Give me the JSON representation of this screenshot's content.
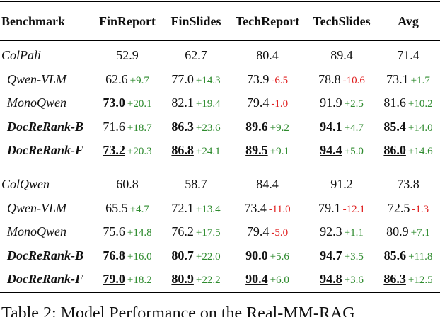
{
  "table": {
    "header": [
      "Benchmark",
      "FinReport",
      "FinSlides",
      "TechReport",
      "TechSlides",
      "Avg"
    ],
    "groups": [
      {
        "rows": [
          {
            "name": "ColPali",
            "cells": [
              {
                "value": "52.9"
              },
              {
                "value": "62.7"
              },
              {
                "value": "80.4"
              },
              {
                "value": "89.4"
              },
              {
                "value": "71.4"
              }
            ]
          },
          {
            "name": "Qwen-VLM",
            "cells": [
              {
                "value": "62.6",
                "delta": "+9.7"
              },
              {
                "value": "77.0",
                "delta": "+14.3"
              },
              {
                "value": "73.9",
                "delta": "-6.5"
              },
              {
                "value": "78.8",
                "delta": "-10.6"
              },
              {
                "value": "73.1",
                "delta": "+1.7"
              }
            ]
          },
          {
            "name": "MonoQwen",
            "cells": [
              {
                "value": "73.0",
                "delta": "+20.1",
                "bold": true
              },
              {
                "value": "82.1",
                "delta": "+19.4"
              },
              {
                "value": "79.4",
                "delta": "-1.0"
              },
              {
                "value": "91.9",
                "delta": "+2.5"
              },
              {
                "value": "81.6",
                "delta": "+10.2"
              }
            ]
          },
          {
            "name": "DocReRank-B",
            "bold": true,
            "cells": [
              {
                "value": "71.6",
                "delta": "+18.7"
              },
              {
                "value": "86.3",
                "delta": "+23.6",
                "bold": true
              },
              {
                "value": "89.6",
                "delta": "+9.2",
                "bold": true
              },
              {
                "value": "94.1",
                "delta": "+4.7",
                "bold": true
              },
              {
                "value": "85.4",
                "delta": "+14.0",
                "bold": true
              }
            ]
          },
          {
            "name": "DocReRank-F",
            "bold": true,
            "cells": [
              {
                "value": "73.2",
                "delta": "+20.3",
                "bold": true,
                "underline": true
              },
              {
                "value": "86.8",
                "delta": "+24.1",
                "bold": true,
                "underline": true
              },
              {
                "value": "89.5",
                "delta": "+9.1",
                "bold": true,
                "underline": true
              },
              {
                "value": "94.4",
                "delta": "+5.0",
                "bold": true,
                "underline": true
              },
              {
                "value": "86.0",
                "delta": "+14.6",
                "bold": true,
                "underline": true
              }
            ]
          }
        ]
      },
      {
        "rows": [
          {
            "name": "ColQwen",
            "cells": [
              {
                "value": "60.8"
              },
              {
                "value": "58.7"
              },
              {
                "value": "84.4"
              },
              {
                "value": "91.2"
              },
              {
                "value": "73.8"
              }
            ]
          },
          {
            "name": "Qwen-VLM",
            "cells": [
              {
                "value": "65.5",
                "delta": "+4.7"
              },
              {
                "value": "72.1",
                "delta": "+13.4"
              },
              {
                "value": "73.4",
                "delta": "-11.0"
              },
              {
                "value": "79.1",
                "delta": "-12.1"
              },
              {
                "value": "72.5",
                "delta": "-1.3"
              }
            ]
          },
          {
            "name": "MonoQwen",
            "cells": [
              {
                "value": "75.6",
                "delta": "+14.8"
              },
              {
                "value": "76.2",
                "delta": "+17.5"
              },
              {
                "value": "79.4",
                "delta": "-5.0"
              },
              {
                "value": "92.3",
                "delta": "+1.1"
              },
              {
                "value": "80.9",
                "delta": "+7.1"
              }
            ]
          },
          {
            "name": "DocReRank-B",
            "bold": true,
            "cells": [
              {
                "value": "76.8",
                "delta": "+16.0",
                "bold": true
              },
              {
                "value": "80.7",
                "delta": "+22.0",
                "bold": true
              },
              {
                "value": "90.0",
                "delta": "+5.6",
                "bold": true
              },
              {
                "value": "94.7",
                "delta": "+3.5",
                "bold": true
              },
              {
                "value": "85.6",
                "delta": "+11.8",
                "bold": true
              }
            ]
          },
          {
            "name": "DocReRank-F",
            "bold": true,
            "cells": [
              {
                "value": "79.0",
                "delta": "+18.2",
                "bold": true,
                "underline": true
              },
              {
                "value": "80.9",
                "delta": "+22.2",
                "bold": true,
                "underline": true
              },
              {
                "value": "90.4",
                "delta": "+6.0",
                "bold": true,
                "underline": true
              },
              {
                "value": "94.8",
                "delta": "+3.6",
                "bold": true,
                "underline": true
              },
              {
                "value": "86.3",
                "delta": "+12.5",
                "bold": true,
                "underline": true
              }
            ]
          }
        ]
      }
    ],
    "caption": "Table 2: Model Performance on the Real-MM-RAG"
  }
}
